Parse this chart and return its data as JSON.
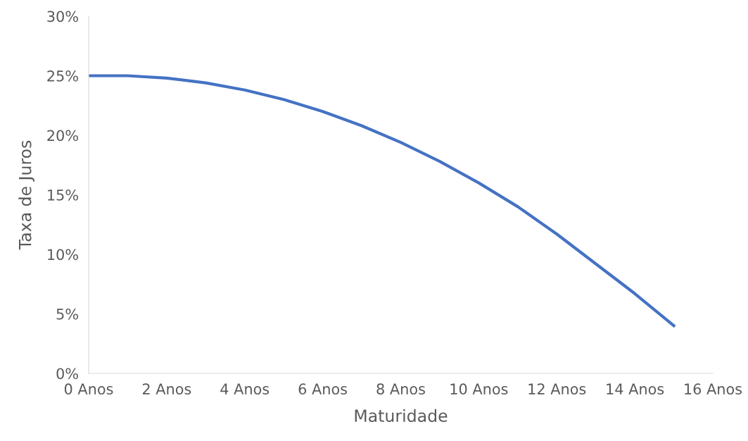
{
  "chart_data": {
    "type": "line",
    "xlabel": "Maturidade",
    "ylabel": "Taxa de Juros",
    "x": [
      0,
      1,
      2,
      3,
      4,
      5,
      6,
      7,
      8,
      9,
      10,
      11,
      12,
      13,
      14,
      15
    ],
    "series": [
      {
        "color": "#4472c4",
        "values": [
          25,
          25,
          24.8,
          24.4,
          23.8,
          23.0,
          22.0,
          20.8,
          19.4,
          17.8,
          16.0,
          14.0,
          11.7,
          9.2,
          6.7,
          4.0
        ]
      }
    ],
    "xlim": [
      0,
      16
    ],
    "xticks": [
      {
        "value": 0,
        "label": "0 Anos"
      },
      {
        "value": 2,
        "label": "2 Anos"
      },
      {
        "value": 4,
        "label": "4 Anos"
      },
      {
        "value": 6,
        "label": "6 Anos"
      },
      {
        "value": 8,
        "label": "8 Anos"
      },
      {
        "value": 10,
        "label": "10 Anos"
      },
      {
        "value": 12,
        "label": "12 Anos"
      },
      {
        "value": 14,
        "label": "14 Anos"
      },
      {
        "value": 16,
        "label": "16 Anos"
      }
    ],
    "ylim": [
      0,
      30
    ],
    "yticks": [
      {
        "value": 0,
        "label": "0%"
      },
      {
        "value": 5,
        "label": "5%"
      },
      {
        "value": 10,
        "label": "10%"
      },
      {
        "value": 15,
        "label": "15%"
      },
      {
        "value": 20,
        "label": "20%"
      },
      {
        "value": 25,
        "label": "25%"
      },
      {
        "value": 30,
        "label": "30%"
      }
    ],
    "grid": false,
    "line_style": "solid",
    "marker": "none"
  }
}
